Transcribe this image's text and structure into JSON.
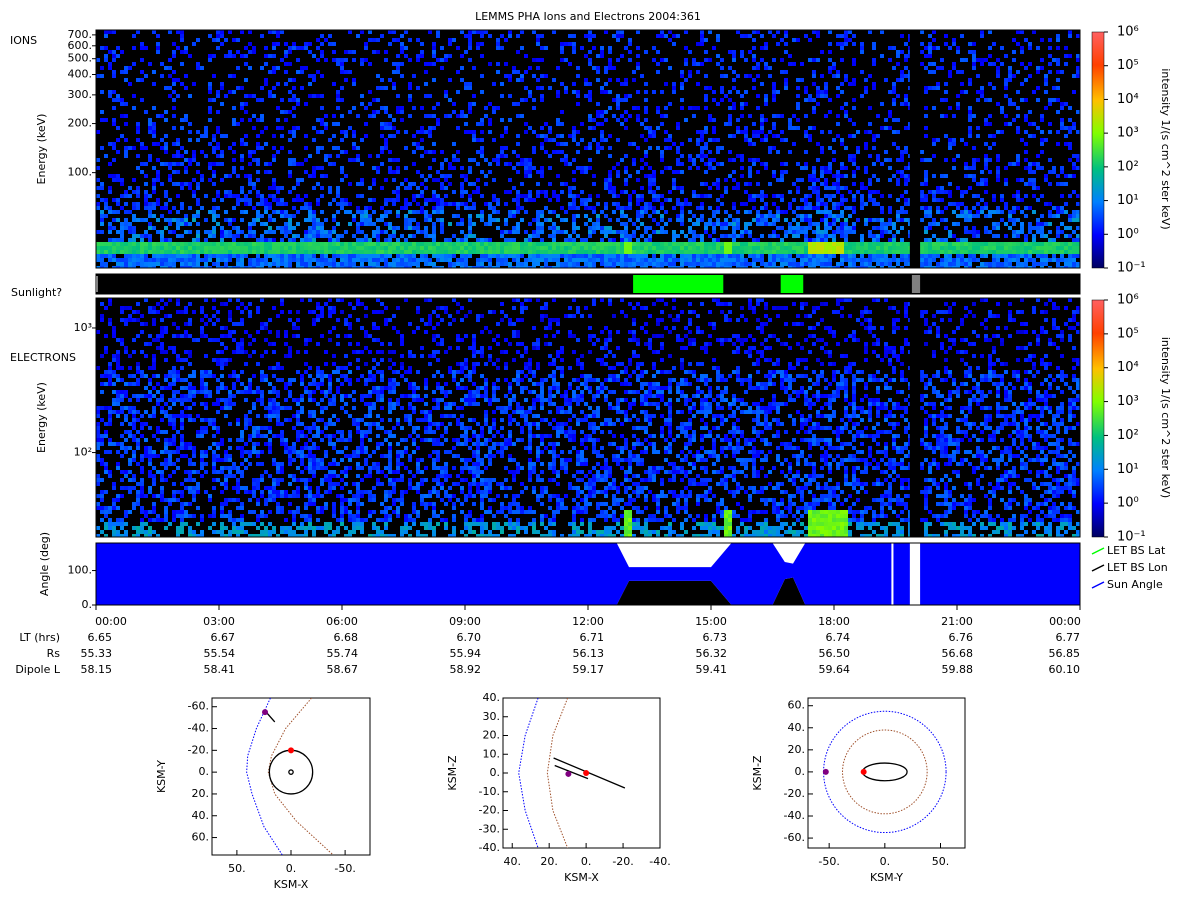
{
  "title": "LEMMS PHA Ions and Electrons  2004:361",
  "chart_data": [
    {
      "type": "spectrogram",
      "label": "IONS",
      "ylabel": "Energy (keV)",
      "ylog": true,
      "ylim": [
        26,
        750
      ],
      "xlim": [
        0,
        24
      ],
      "yticks": [
        {
          "value": 100,
          "label": "100."
        },
        {
          "value": 200,
          "label": "200."
        },
        {
          "value": 300,
          "label": "300."
        },
        {
          "value": 400,
          "label": "400."
        },
        {
          "value": 500,
          "label": "500."
        },
        {
          "value": 600,
          "label": "600."
        },
        {
          "value": 700,
          "label": "700."
        }
      ],
      "gaps": [
        [
          19.85,
          20.1
        ]
      ],
      "colorbar": {
        "label": "intensity 1/(s cm^2 ster keV)",
        "log": true,
        "clim": [
          0.1,
          1000000
        ],
        "ticks": [
          {
            "value": 0.1,
            "label": "10⁻¹"
          },
          {
            "value": 1,
            "label": "10⁰"
          },
          {
            "value": 10,
            "label": "10¹"
          },
          {
            "value": 100,
            "label": "10²"
          },
          {
            "value": 1000,
            "label": "10³"
          },
          {
            "value": 10000,
            "label": "10⁴"
          },
          {
            "value": 100000,
            "label": "10⁵"
          },
          {
            "value": 1000000,
            "label": "10⁶"
          }
        ]
      }
    },
    {
      "type": "timebar",
      "label": "Sunlight?",
      "xlim": [
        0,
        24
      ],
      "background": "#000000",
      "intervals": [
        {
          "start": 13.1,
          "end": 15.3,
          "color": "#00ff00"
        },
        {
          "start": 16.7,
          "end": 17.25,
          "color": "#00ff00"
        },
        {
          "start": 19.9,
          "end": 20.1,
          "color": "#808080"
        }
      ]
    },
    {
      "type": "spectrogram",
      "label": "ELECTRONS",
      "ylabel": "Energy (keV)",
      "ylog": true,
      "ylim": [
        21,
        1740
      ],
      "xlim": [
        0,
        24
      ],
      "yticks": [
        {
          "value": 100,
          "label": "10²"
        },
        {
          "value": 1000,
          "label": "10³"
        }
      ],
      "gaps": [
        [
          19.85,
          20.1
        ]
      ],
      "colorbar": {
        "label": "intensity 1/(s cm^2 ster keV)",
        "log": true,
        "clim": [
          0.1,
          1000000
        ],
        "ticks": [
          {
            "value": 0.1,
            "label": "10⁻¹"
          },
          {
            "value": 1,
            "label": "10⁰"
          },
          {
            "value": 10,
            "label": "10¹"
          },
          {
            "value": 100,
            "label": "10²"
          },
          {
            "value": 1000,
            "label": "10³"
          },
          {
            "value": 10000,
            "label": "10⁴"
          },
          {
            "value": 100000,
            "label": "10⁵"
          },
          {
            "value": 1000000,
            "label": "10⁶"
          }
        ]
      }
    },
    {
      "type": "area",
      "ylabel": "Angle (deg)",
      "xlim": [
        0,
        24
      ],
      "ylim": [
        0,
        180
      ],
      "yticks": [
        {
          "value": 0,
          "label": "0."
        },
        {
          "value": 100,
          "label": "100."
        }
      ],
      "xticks": [
        {
          "value": 0,
          "label": "00:00"
        },
        {
          "value": 3,
          "label": "03:00"
        },
        {
          "value": 6,
          "label": "06:00"
        },
        {
          "value": 9,
          "label": "09:00"
        },
        {
          "value": 12,
          "label": "12:00"
        },
        {
          "value": 15,
          "label": "15:00"
        },
        {
          "value": 18,
          "label": "18:00"
        },
        {
          "value": 21,
          "label": "21:00"
        },
        {
          "value": 24,
          "label": "00:00"
        }
      ],
      "gaps": [
        [
          19.4,
          19.45
        ],
        [
          19.85,
          20.1
        ]
      ],
      "legend": "right",
      "series": [
        {
          "name": "LET BS Lat",
          "color": "#00ff00",
          "x": [],
          "values": []
        },
        {
          "name": "LET BS Lon",
          "color": "#000000",
          "x": [
            0,
            12.7,
            13.0,
            15.0,
            15.5,
            16.5,
            16.8,
            17.0,
            17.3,
            24
          ],
          "values": [
            0,
            0,
            70,
            70,
            0,
            0,
            75,
            80,
            0,
            0
          ]
        },
        {
          "name": "Sun Angle",
          "color": "#0000ff",
          "x": [
            0,
            12.7,
            13.0,
            15.0,
            15.5,
            16.5,
            16.8,
            17.0,
            17.3,
            24
          ],
          "lower": [
            0,
            0,
            70,
            70,
            0,
            0,
            75,
            80,
            0,
            0
          ],
          "values": [
            180,
            180,
            110,
            110,
            180,
            180,
            125,
            120,
            180,
            180
          ]
        }
      ],
      "ephemeris": [
        {
          "label": "LT (hrs)",
          "values": [
            "6.65",
            "6.67",
            "6.68",
            "6.70",
            "6.71",
            "6.73",
            "6.74",
            "6.76",
            "6.77"
          ]
        },
        {
          "label": "Rs",
          "values": [
            "55.33",
            "55.54",
            "55.74",
            "55.94",
            "56.13",
            "56.32",
            "56.50",
            "56.68",
            "56.85"
          ]
        },
        {
          "label": "Dipole L",
          "values": [
            "58.15",
            "58.41",
            "58.67",
            "58.92",
            "59.17",
            "59.41",
            "59.64",
            "59.88",
            "60.10"
          ]
        }
      ]
    },
    {
      "type": "orbit",
      "xlabel": "KSM-X",
      "ylabel": "KSM-Y",
      "xlim": [
        73,
        -73
      ],
      "ylim": [
        76,
        -68
      ],
      "xticks": [
        {
          "value": 50,
          "label": "50."
        },
        {
          "value": 0,
          "label": "0."
        },
        {
          "value": -50,
          "label": "-50."
        }
      ],
      "yticks": [
        {
          "value": -60,
          "label": "-60."
        },
        {
          "value": -40,
          "label": "-40."
        },
        {
          "value": -20,
          "label": "-20."
        },
        {
          "value": 0,
          "label": "0."
        },
        {
          "value": 20,
          "label": "20."
        },
        {
          "value": 40,
          "label": "40."
        },
        {
          "value": 60,
          "label": "60."
        }
      ],
      "series": [
        {
          "color": "#0000ff",
          "dotted": true,
          "x": [
            19,
            32,
            40,
            41,
            36,
            25,
            8
          ],
          "y": [
            -68,
            -40,
            -15,
            0,
            20,
            50,
            76
          ]
        },
        {
          "color": "#a0522d",
          "dotted": true,
          "x": [
            -19,
            5,
            18,
            21,
            15,
            -5,
            -39
          ],
          "y": [
            -68,
            -40,
            -15,
            0,
            20,
            45,
            76
          ]
        },
        {
          "color": "#000000",
          "dotted": false,
          "x": [
            26,
            22,
            15
          ],
          "y": [
            -56,
            -54,
            -46
          ]
        }
      ],
      "ellipses": [
        {
          "cx": 0,
          "cy": 0,
          "rx": 20,
          "ry": 20,
          "color": "#000000"
        },
        {
          "cx": 0,
          "cy": 0,
          "rx": 2,
          "ry": 2,
          "color": "#000000"
        }
      ],
      "points": [
        {
          "x": 0,
          "y": -20,
          "color": "#ff0000"
        },
        {
          "x": 24,
          "y": -55,
          "color": "#800080"
        }
      ]
    },
    {
      "type": "orbit",
      "xlabel": "KSM-X",
      "ylabel": "KSM-Z",
      "xlim": [
        45,
        -40
      ],
      "ylim": [
        -40,
        40
      ],
      "xticks": [
        {
          "value": 40,
          "label": "40."
        },
        {
          "value": 20,
          "label": "20."
        },
        {
          "value": 0,
          "label": "0."
        },
        {
          "value": -20,
          "label": "-20."
        },
        {
          "value": -40,
          "label": "-40."
        }
      ],
      "yticks": [
        {
          "value": 40,
          "label": "40."
        },
        {
          "value": 30,
          "label": "30."
        },
        {
          "value": 20,
          "label": "20."
        },
        {
          "value": 10,
          "label": "10."
        },
        {
          "value": 0,
          "label": "0."
        },
        {
          "value": -10,
          "label": "-10."
        },
        {
          "value": -20,
          "label": "-20."
        },
        {
          "value": -30,
          "label": "-30."
        },
        {
          "value": -40,
          "label": "-40."
        }
      ],
      "series": [
        {
          "color": "#0000ff",
          "dotted": true,
          "x": [
            26,
            33,
            36.5,
            33,
            26
          ],
          "y": [
            40,
            20,
            0,
            -20,
            -40
          ]
        },
        {
          "color": "#a0522d",
          "dotted": true,
          "x": [
            10,
            18,
            21,
            18,
            10
          ],
          "y": [
            40,
            20,
            0,
            -20,
            -40
          ]
        },
        {
          "color": "#000000",
          "dotted": false,
          "x": [
            17.6,
            -21
          ],
          "y": [
            8,
            -8
          ]
        },
        {
          "color": "#000000",
          "dotted": false,
          "x": [
            17,
            -1
          ],
          "y": [
            4,
            -3
          ]
        }
      ],
      "ellipses": [],
      "points": [
        {
          "x": 0,
          "y": 0,
          "color": "#ff0000"
        },
        {
          "x": 9.6,
          "y": -0.5,
          "color": "#800080"
        }
      ]
    },
    {
      "type": "orbit",
      "xlabel": "KSM-Y",
      "ylabel": "KSM-Z",
      "xlim": [
        -69,
        72
      ],
      "ylim": [
        -69,
        67
      ],
      "xticks": [
        {
          "value": -50,
          "label": "-50."
        },
        {
          "value": 0,
          "label": "0."
        },
        {
          "value": 50,
          "label": "50."
        }
      ],
      "yticks": [
        {
          "value": 60,
          "label": "60."
        },
        {
          "value": 40,
          "label": "40."
        },
        {
          "value": 20,
          "label": "20."
        },
        {
          "value": 0,
          "label": "0."
        },
        {
          "value": -20,
          "label": "-20."
        },
        {
          "value": -40,
          "label": "-40."
        },
        {
          "value": -60,
          "label": "-60."
        }
      ],
      "series": [],
      "ellipses": [
        {
          "cx": 0,
          "cy": 0,
          "rx": 55,
          "ry": 55,
          "color": "#0000ff",
          "dotted": true
        },
        {
          "cx": 0,
          "cy": 0,
          "rx": 38,
          "ry": 38,
          "color": "#a0522d",
          "dotted": true
        },
        {
          "cx": 0,
          "cy": 0,
          "rx": 20,
          "ry": 8,
          "color": "#000000"
        }
      ],
      "points": [
        {
          "x": -19,
          "y": 0,
          "color": "#ff0000"
        },
        {
          "x": -53,
          "y": 0,
          "color": "#800080"
        }
      ]
    }
  ]
}
